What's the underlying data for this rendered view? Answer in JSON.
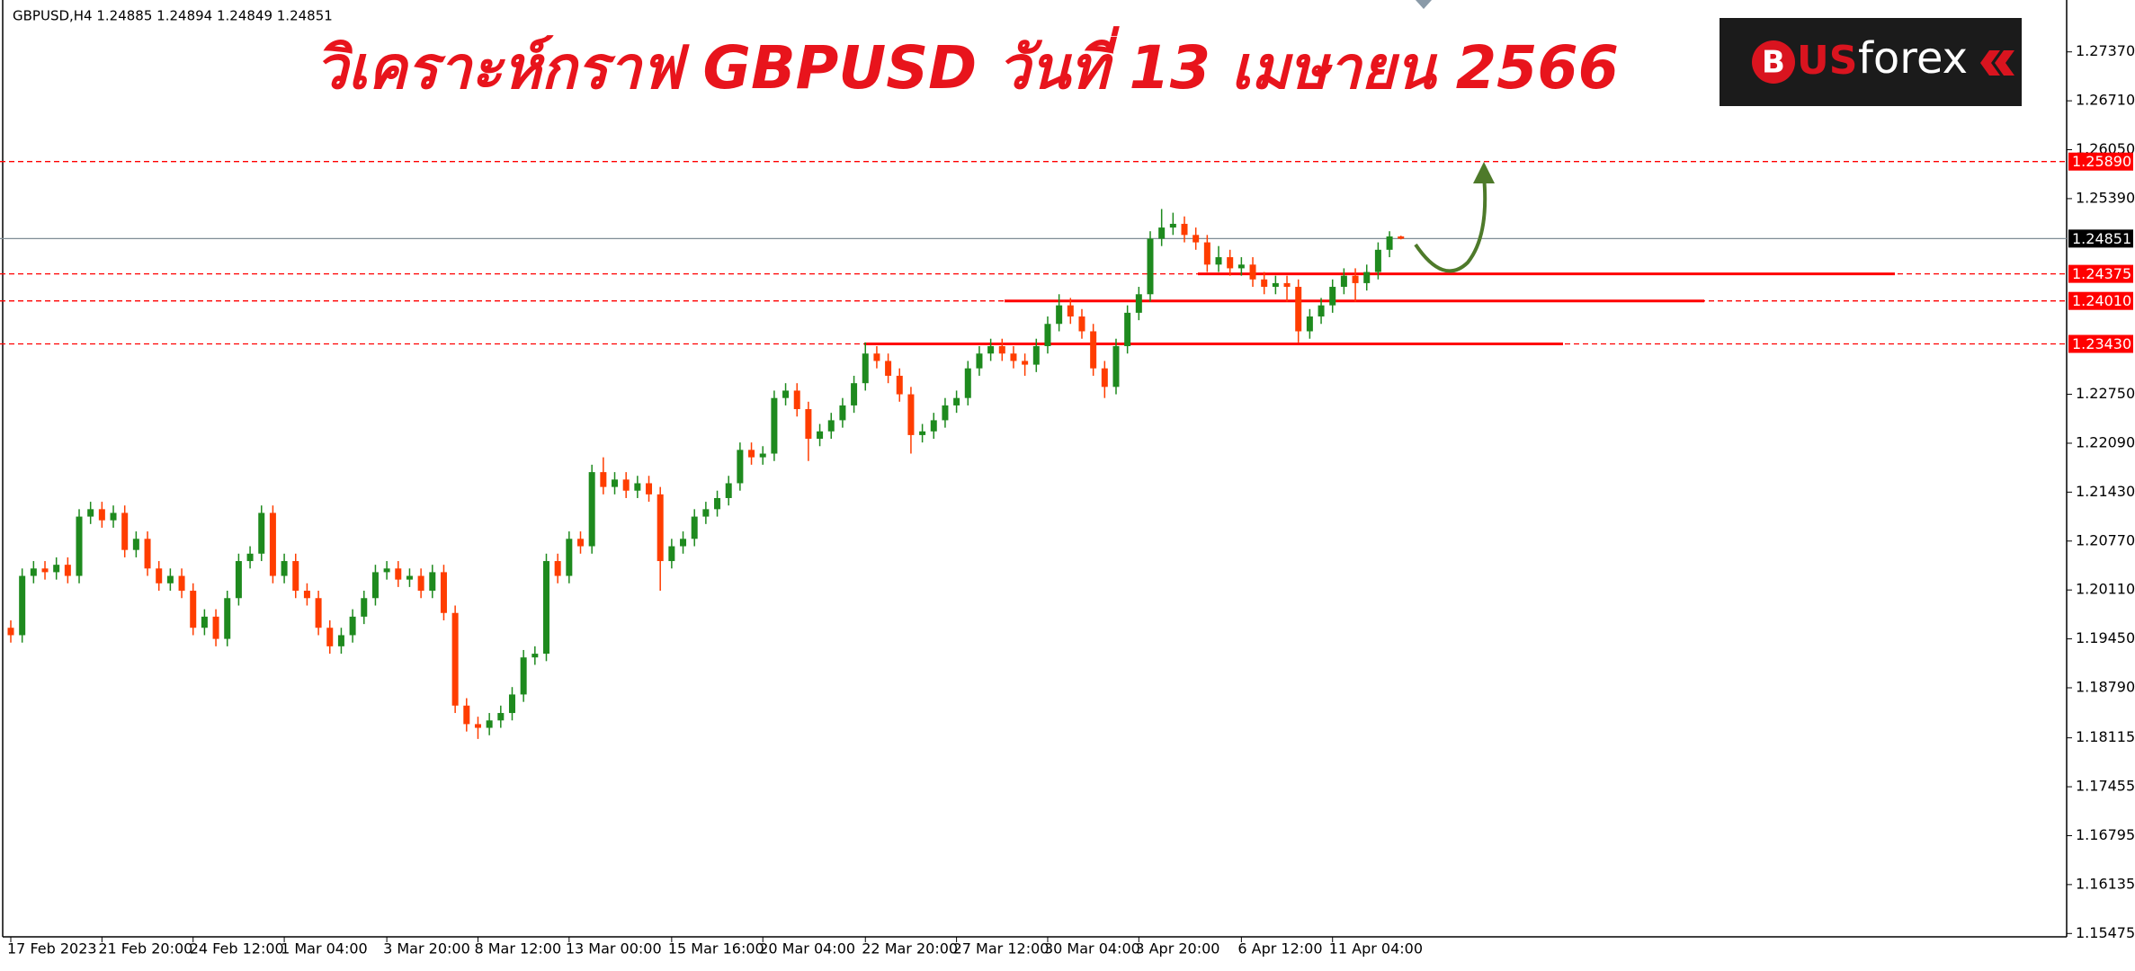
{
  "chart_data": {
    "type": "candlestick",
    "title": "วิเคราะห์กราฟ GBPUSD วันที่ 13 เมษายน 2566",
    "symbol_info": "GBPUSD,H4  1.24885 1.24894 1.24849 1.24851",
    "logo": {
      "mark": "B",
      "text_1": "US",
      "text_2": "forex"
    },
    "up_color": "#1e8a1e",
    "down_color": "#ff3d00",
    "ylim": [
      1.1543,
      1.2807
    ],
    "yticks": [
      {
        "value": 1.2737,
        "label": "1.27370"
      },
      {
        "value": 1.2671,
        "label": "1.26710"
      },
      {
        "value": 1.2605,
        "label": "1.26050"
      },
      {
        "value": 1.2539,
        "label": "1.25390"
      },
      {
        "value": 1.2275,
        "label": "1.22750"
      },
      {
        "value": 1.2209,
        "label": "1.22090"
      },
      {
        "value": 1.2143,
        "label": "1.21430"
      },
      {
        "value": 1.2077,
        "label": "1.20770"
      },
      {
        "value": 1.2011,
        "label": "1.20110"
      },
      {
        "value": 1.1945,
        "label": "1.19450"
      },
      {
        "value": 1.1879,
        "label": "1.18790"
      },
      {
        "value": 1.18115,
        "label": "1.18115"
      },
      {
        "value": 1.17455,
        "label": "1.17455"
      },
      {
        "value": 1.16795,
        "label": "1.16795"
      },
      {
        "value": 1.16135,
        "label": "1.16135"
      },
      {
        "value": 1.15475,
        "label": "1.15475"
      }
    ],
    "levels": [
      {
        "value": 1.2589,
        "label": "1.25890"
      },
      {
        "value": 1.24375,
        "label": "1.24375"
      },
      {
        "value": 1.2401,
        "label": "1.24010"
      },
      {
        "value": 1.2343,
        "label": "1.23430"
      }
    ],
    "level_color": "#ff0000",
    "price": {
      "value": 1.24851,
      "label": "1.24851"
    },
    "categories": [
      "17 Feb 2023",
      null,
      null,
      null,
      null,
      null,
      null,
      null,
      "21 Feb 20:00",
      null,
      null,
      null,
      null,
      null,
      null,
      null,
      "24 Feb 12:00",
      null,
      null,
      null,
      null,
      null,
      null,
      null,
      "1 Mar 04:00",
      null,
      null,
      null,
      null,
      null,
      null,
      null,
      null,
      "3 Mar 20:00",
      null,
      null,
      null,
      null,
      null,
      null,
      null,
      "8 Mar 12:00",
      null,
      null,
      null,
      null,
      null,
      null,
      null,
      "13 Mar 00:00",
      null,
      null,
      null,
      null,
      null,
      null,
      null,
      null,
      "15 Mar 16:00",
      null,
      null,
      null,
      null,
      null,
      null,
      null,
      "20 Mar 04:00",
      null,
      null,
      null,
      null,
      null,
      null,
      null,
      null,
      "22 Mar 20:00",
      null,
      null,
      null,
      null,
      null,
      null,
      null,
      "27 Mar 12:00",
      null,
      null,
      null,
      null,
      null,
      null,
      null,
      "30 Mar 04:00",
      null,
      null,
      null,
      null,
      null,
      null,
      null,
      "3 Apr 20:00",
      null,
      null,
      null,
      null,
      null,
      null,
      null,
      null,
      "6 Apr 12:00",
      null,
      null,
      null,
      null,
      null,
      null,
      null,
      "11 Apr 04:00",
      null,
      null,
      null,
      null,
      null,
      null
    ],
    "open": [
      1.196,
      1.195,
      1.203,
      1.204,
      1.2035,
      1.2045,
      1.203,
      1.211,
      1.212,
      1.2105,
      1.2115,
      1.2065,
      1.208,
      1.204,
      1.202,
      1.203,
      1.201,
      1.196,
      1.1975,
      1.1945,
      1.2,
      1.205,
      1.206,
      1.2115,
      1.203,
      1.205,
      1.201,
      1.2,
      1.196,
      1.1935,
      1.195,
      1.1975,
      1.2,
      1.2035,
      1.204,
      1.2025,
      1.203,
      1.201,
      1.2035,
      1.198,
      1.1855,
      1.183,
      1.1825,
      1.1835,
      1.1845,
      1.187,
      1.192,
      1.1925,
      1.205,
      1.203,
      1.208,
      1.207,
      1.217,
      1.215,
      1.216,
      1.2145,
      1.2155,
      1.214,
      1.205,
      1.207,
      1.208,
      1.211,
      1.212,
      1.2135,
      1.2155,
      1.22,
      1.219,
      1.2195,
      1.227,
      1.228,
      1.2255,
      1.2215,
      1.2225,
      1.224,
      1.226,
      1.229,
      1.233,
      1.232,
      1.23,
      1.2275,
      1.222,
      1.2225,
      1.224,
      1.226,
      1.227,
      1.231,
      1.233,
      1.234,
      1.233,
      1.232,
      1.2315,
      1.234,
      1.237,
      1.2395,
      1.238,
      1.236,
      1.231,
      1.2285,
      1.234,
      1.2385,
      1.241,
      1.2485,
      1.25,
      1.2505,
      1.249,
      1.248,
      1.245,
      1.246,
      1.2445,
      1.245,
      1.243,
      1.242,
      1.2425,
      1.242,
      1.236,
      1.238,
      1.2395,
      1.242,
      1.2435,
      1.2425,
      1.244,
      1.247,
      1.2488
    ],
    "high": [
      1.197,
      1.204,
      1.205,
      1.205,
      1.2055,
      1.2055,
      1.212,
      1.213,
      1.213,
      1.2125,
      1.2125,
      1.209,
      1.209,
      1.205,
      1.204,
      1.204,
      1.202,
      1.1985,
      1.1985,
      1.201,
      1.206,
      1.207,
      1.2125,
      1.2125,
      1.206,
      1.206,
      1.202,
      1.201,
      1.197,
      1.196,
      1.1985,
      1.201,
      1.2045,
      1.205,
      1.205,
      1.204,
      1.204,
      1.2045,
      1.2045,
      1.199,
      1.1865,
      1.184,
      1.1845,
      1.1855,
      1.188,
      1.193,
      1.1935,
      1.206,
      1.206,
      1.209,
      1.209,
      1.218,
      1.219,
      1.217,
      1.217,
      1.2165,
      1.2165,
      1.215,
      1.208,
      1.209,
      1.212,
      1.213,
      1.2145,
      1.2165,
      1.221,
      1.221,
      1.2205,
      1.228,
      1.229,
      1.229,
      1.2265,
      1.2235,
      1.225,
      1.227,
      1.23,
      1.2345,
      1.234,
      1.233,
      1.231,
      1.2285,
      1.2235,
      1.225,
      1.227,
      1.228,
      1.232,
      1.234,
      1.235,
      1.235,
      1.234,
      1.233,
      1.235,
      1.238,
      1.241,
      1.2405,
      1.239,
      1.237,
      1.232,
      1.235,
      1.2395,
      1.242,
      1.2495,
      1.2525,
      1.252,
      1.2515,
      1.25,
      1.249,
      1.2475,
      1.247,
      1.246,
      1.246,
      1.244,
      1.2435,
      1.2435,
      1.243,
      1.239,
      1.2405,
      1.243,
      1.2445,
      1.2445,
      1.245,
      1.248,
      1.2495,
      1.2489
    ],
    "low": [
      1.194,
      1.194,
      1.202,
      1.2025,
      1.2025,
      1.202,
      1.202,
      1.21,
      1.2095,
      1.2095,
      1.2055,
      1.2055,
      1.203,
      1.201,
      1.201,
      1.2,
      1.195,
      1.195,
      1.1935,
      1.1935,
      1.199,
      1.204,
      1.205,
      1.202,
      1.202,
      1.2,
      1.199,
      1.195,
      1.1925,
      1.1925,
      1.194,
      1.1965,
      1.199,
      1.2025,
      1.2015,
      1.2015,
      1.2,
      1.2,
      1.197,
      1.1845,
      1.182,
      1.181,
      1.1815,
      1.1825,
      1.1835,
      1.186,
      1.191,
      1.1915,
      1.202,
      1.202,
      1.206,
      1.206,
      1.214,
      1.214,
      1.2135,
      1.2135,
      1.213,
      1.201,
      1.204,
      1.206,
      1.207,
      1.21,
      1.211,
      1.2125,
      1.2145,
      1.218,
      1.218,
      1.2185,
      1.226,
      1.2245,
      1.2185,
      1.2205,
      1.2215,
      1.223,
      1.225,
      1.228,
      1.231,
      1.229,
      1.2265,
      1.2195,
      1.221,
      1.2215,
      1.223,
      1.225,
      1.226,
      1.23,
      1.232,
      1.232,
      1.231,
      1.23,
      1.2305,
      1.233,
      1.236,
      1.237,
      1.235,
      1.23,
      1.227,
      1.2275,
      1.233,
      1.2375,
      1.24,
      1.2475,
      1.249,
      1.248,
      1.247,
      1.244,
      1.244,
      1.2435,
      1.2435,
      1.242,
      1.241,
      1.241,
      1.24,
      1.2345,
      1.235,
      1.237,
      1.2385,
      1.241,
      1.24,
      1.2415,
      1.243,
      1.246,
      1.2484
    ],
    "close": [
      1.195,
      1.203,
      1.204,
      1.2035,
      1.2045,
      1.203,
      1.211,
      1.212,
      1.2105,
      1.2115,
      1.2065,
      1.208,
      1.204,
      1.202,
      1.203,
      1.201,
      1.196,
      1.1975,
      1.1945,
      1.2,
      1.205,
      1.206,
      1.2115,
      1.203,
      1.205,
      1.201,
      1.2,
      1.196,
      1.1935,
      1.195,
      1.1975,
      1.2,
      1.2035,
      1.204,
      1.2025,
      1.203,
      1.201,
      1.2035,
      1.198,
      1.1855,
      1.183,
      1.1825,
      1.1835,
      1.1845,
      1.187,
      1.192,
      1.1925,
      1.205,
      1.203,
      1.208,
      1.207,
      1.217,
      1.215,
      1.216,
      1.2145,
      1.2155,
      1.214,
      1.205,
      1.207,
      1.208,
      1.211,
      1.212,
      1.2135,
      1.2155,
      1.22,
      1.219,
      1.2195,
      1.227,
      1.228,
      1.2255,
      1.2215,
      1.2225,
      1.224,
      1.226,
      1.229,
      1.233,
      1.232,
      1.23,
      1.2275,
      1.222,
      1.2225,
      1.224,
      1.226,
      1.227,
      1.231,
      1.233,
      1.234,
      1.233,
      1.232,
      1.2315,
      1.234,
      1.237,
      1.2395,
      1.238,
      1.236,
      1.231,
      1.2285,
      1.234,
      1.2385,
      1.241,
      1.2485,
      1.25,
      1.2505,
      1.249,
      1.248,
      1.245,
      1.246,
      1.2445,
      1.245,
      1.243,
      1.242,
      1.2425,
      1.242,
      1.236,
      1.238,
      1.2395,
      1.242,
      1.2435,
      1.2425,
      1.244,
      1.247,
      1.2488,
      1.2485
    ]
  }
}
